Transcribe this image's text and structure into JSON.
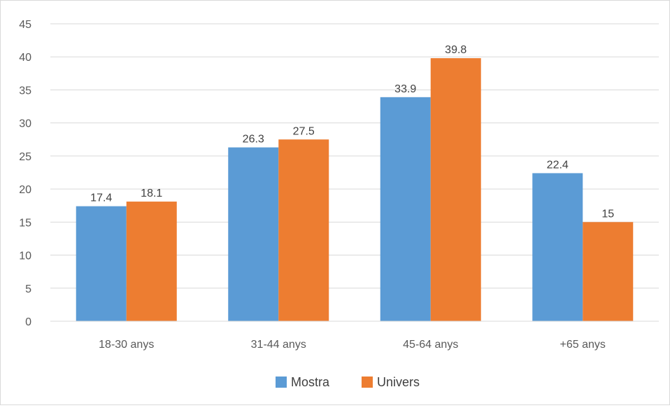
{
  "chart_data": {
    "type": "bar",
    "categories": [
      "18-30 anys",
      "31-44 anys",
      "45-64 anys",
      "+65 anys"
    ],
    "series": [
      {
        "name": "Mostra",
        "values": [
          17.4,
          26.3,
          33.9,
          22.4
        ],
        "color": "#5b9bd5"
      },
      {
        "name": "Univers",
        "values": [
          18.1,
          27.5,
          39.8,
          15
        ],
        "color": "#ed7d31"
      }
    ],
    "ylim": [
      0,
      45
    ],
    "yticks": [
      0,
      5,
      10,
      15,
      20,
      25,
      30,
      35,
      40,
      45
    ],
    "grid": true,
    "legend": "bottom",
    "data_labels": true
  },
  "colors": {
    "gridline": "#d9d9d9",
    "axis_text": "#595959",
    "label_text": "#404040"
  }
}
